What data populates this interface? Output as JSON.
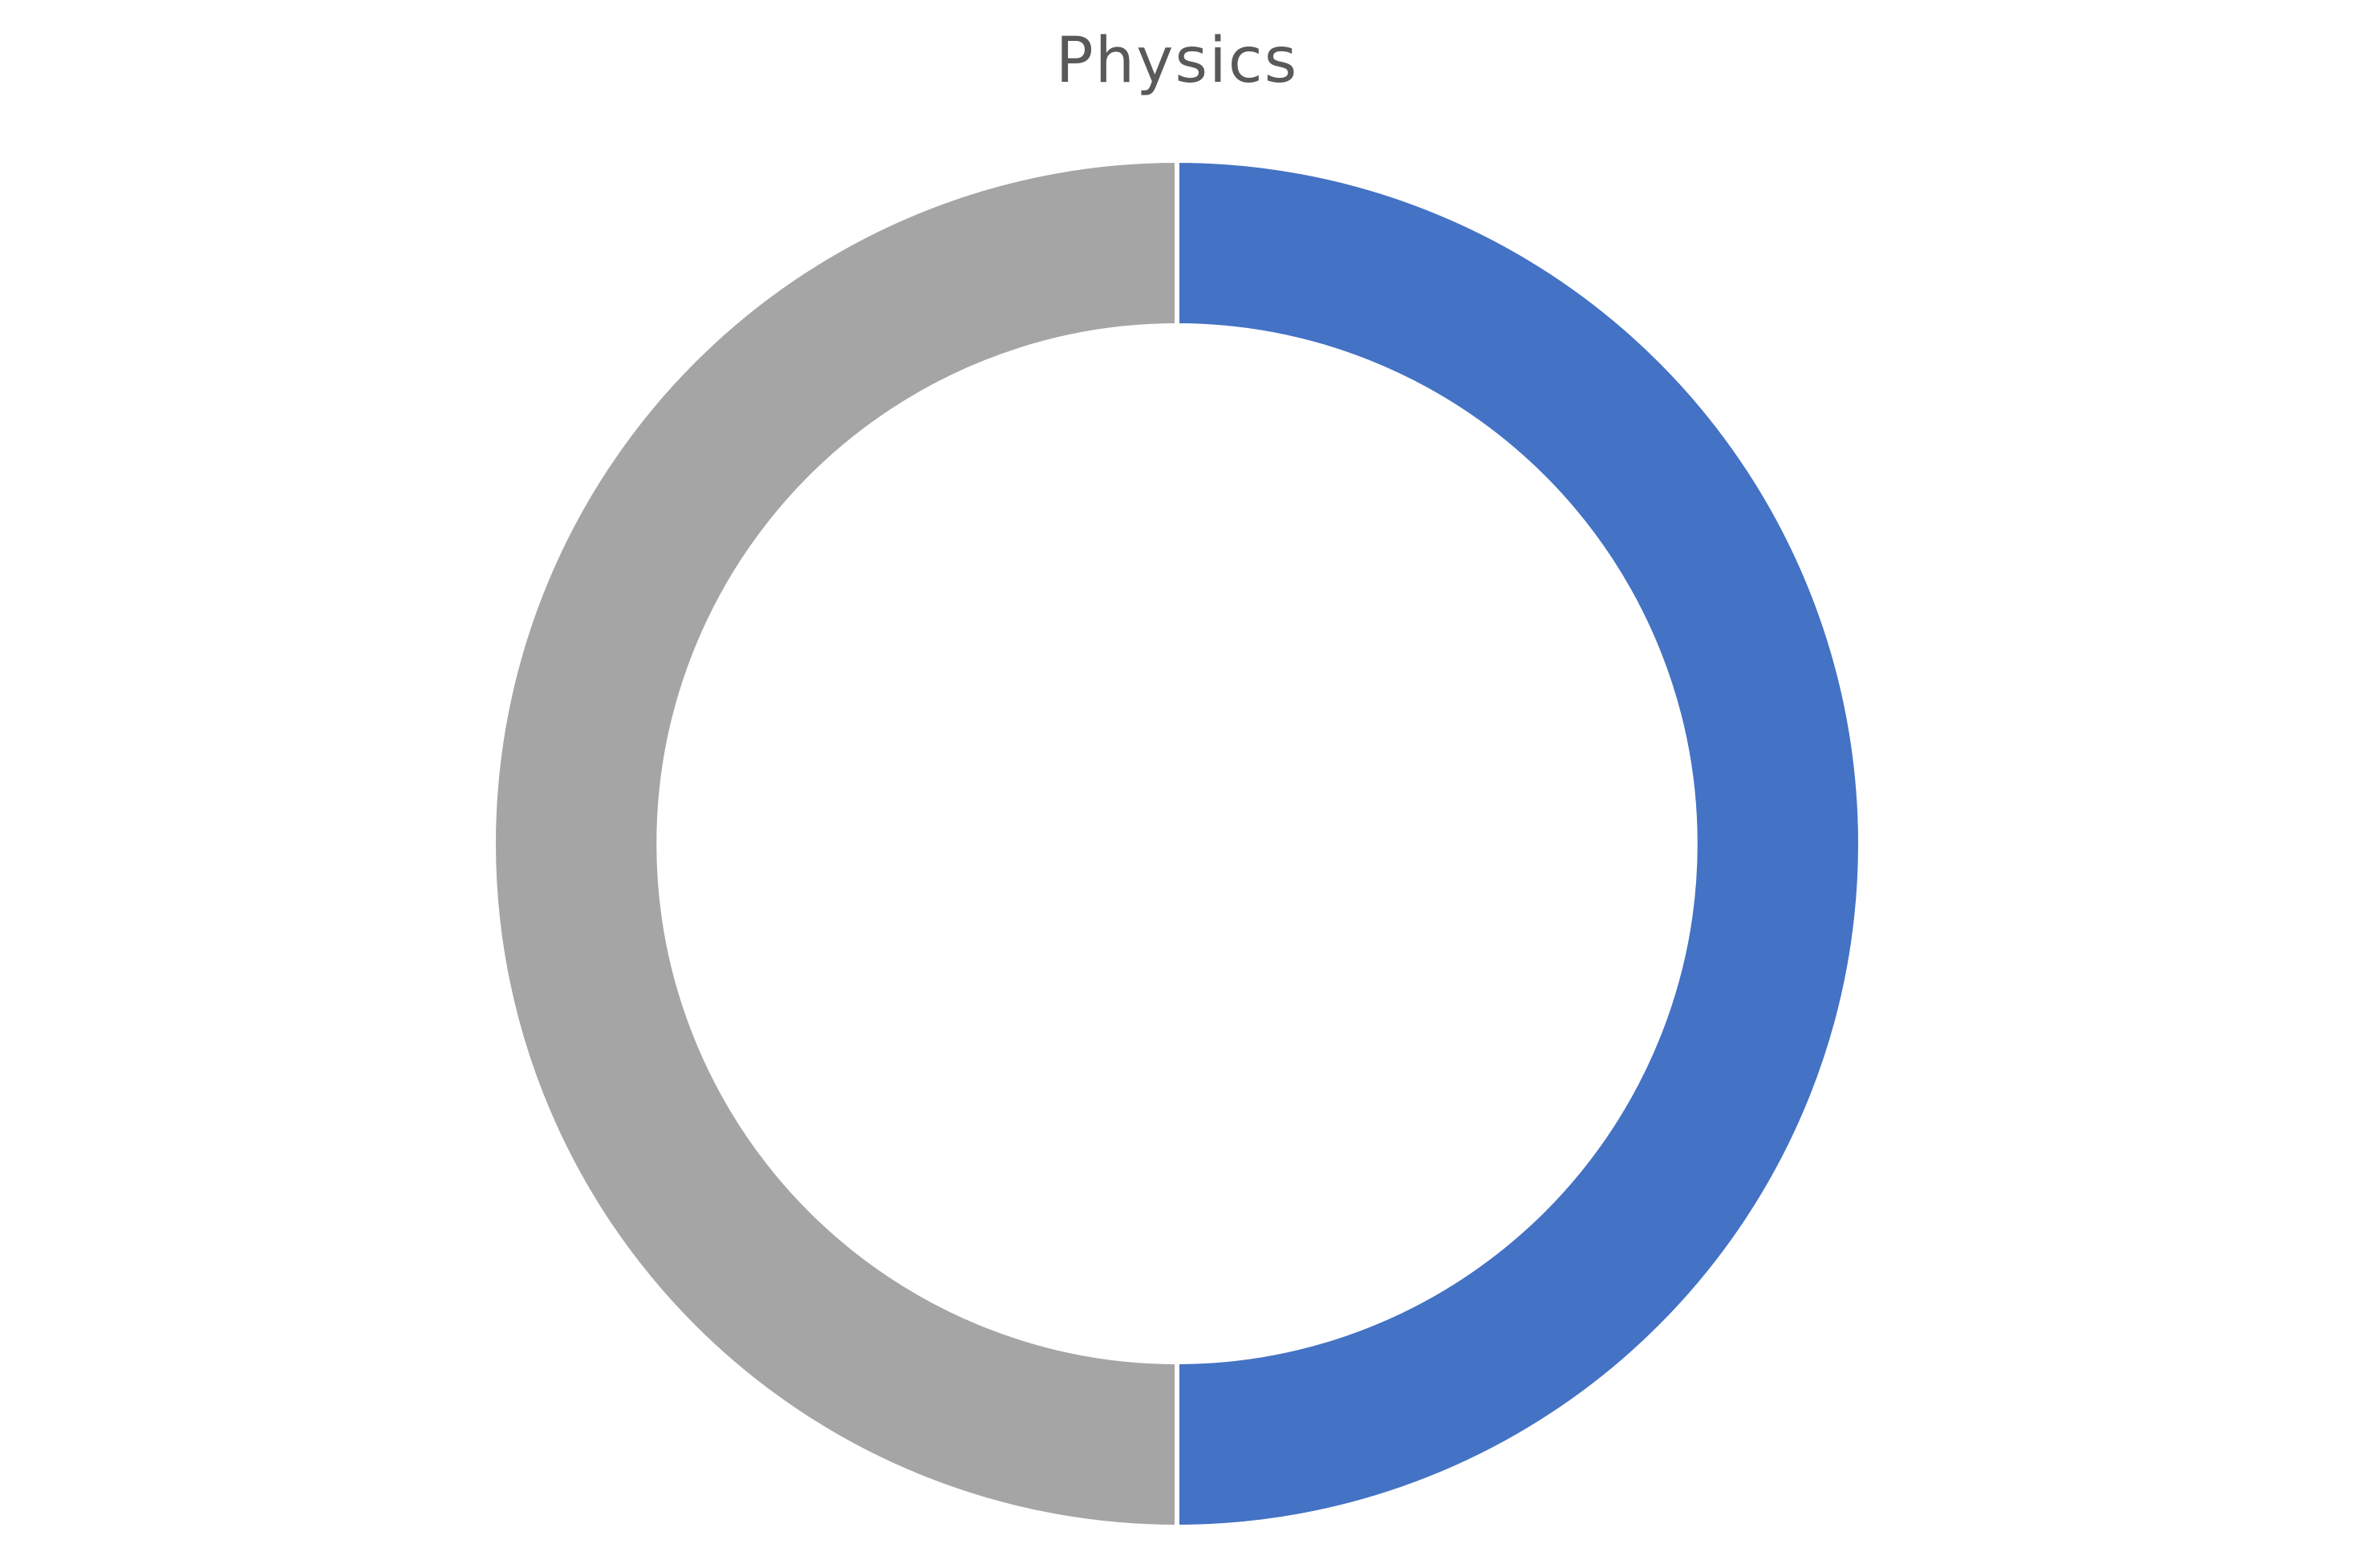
{
  "chart_data": {
    "type": "pie",
    "subtype": "donut",
    "title": "Physics",
    "categories": [
      "",
      ""
    ],
    "values": [
      50,
      50
    ],
    "colors": [
      "#4472C4",
      "#A5A5A5"
    ],
    "start_angle_deg": 0,
    "direction": "clockwise",
    "legend": "none",
    "data_labels": false
  }
}
